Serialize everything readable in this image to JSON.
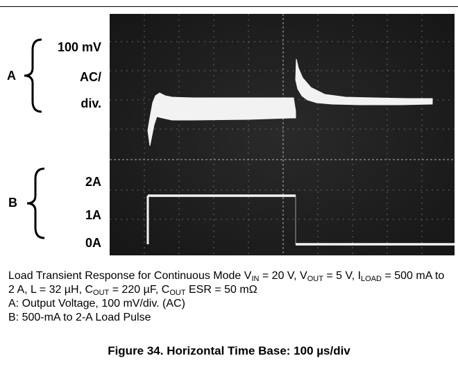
{
  "figure": {
    "channel_a": {
      "letter": "A",
      "scale_line1": "100 mV",
      "scale_line2": "AC/",
      "scale_line3": "div."
    },
    "channel_b": {
      "letter": "B",
      "levels": [
        "2A",
        "1A",
        "0A"
      ]
    }
  },
  "caption": {
    "line1_prefix": "Load Transient Response for Continuous Mode V",
    "vin_sub": "IN",
    "vin_value": " = 20 V, V",
    "vout_sub": "OUT",
    "vout_value": " = 5 V, I",
    "iload_sub": "LOAD",
    "iload_value": " = 500 mA to 2 A, L = 32 µH, C",
    "cout_sub": "OUT",
    "cout_value": " = 220 µF, C",
    "cout_esr_sub": "OUT",
    "cout_esr_value": " ESR = 50 mΩ",
    "line_a": "A: Output Voltage, 100 mV/div. (AC)",
    "line_b": "B: 500-mA to 2-A Load Pulse"
  },
  "figure_title": "Figure 34. Horizontal Time Base: 100 µs/div"
}
